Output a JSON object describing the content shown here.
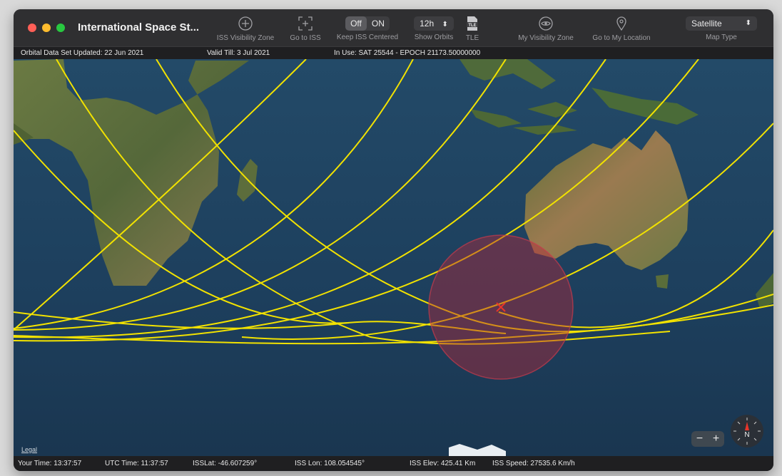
{
  "window": {
    "title": "International Space St...",
    "toolbar": {
      "visibility_zone_label": "ISS Visibility Zone",
      "goto_iss_label": "Go to ISS",
      "keep_centered": {
        "label": "Keep ISS Centered",
        "off": "Off",
        "on": "ON",
        "selected": "Off"
      },
      "show_orbits": {
        "label": "Show Orbits",
        "value": "12h"
      },
      "tle_label": "TLE",
      "tle_icon_text": "TLE",
      "my_visibility_label": "My Visibility Zone",
      "goto_location_label": "Go to My Location",
      "map_type": {
        "label": "Map Type",
        "value": "Satellite"
      }
    }
  },
  "info_bar": {
    "orbital_updated": "Orbital Data Set Updated:  22 Jun 2021",
    "valid_till": "Valid Till:  3 Jul 2021",
    "in_use": "In Use:  SAT 25544   -   EPOCH 21173.50000000"
  },
  "map": {
    "legal_label": "Legal",
    "zoom_out": "−",
    "zoom_in": "+",
    "compass_label": "N",
    "colors": {
      "ocean": "#1e3f5c",
      "land": "#5b6b3a",
      "orbit": "#f2e200",
      "visibility": "#b0283a",
      "iss_marker": "#e8352a"
    }
  },
  "status_bar": {
    "your_time": "Your Time:   13:37:57",
    "utc_time": "UTC Time: 11:37:57",
    "iss_lat": "ISSLat: -46.607259°",
    "iss_lon": "ISS Lon:  108.054545°",
    "iss_elev": "ISS Elev: 425.41 Km",
    "iss_speed": "ISS Speed: 27535.6 Km/h"
  }
}
